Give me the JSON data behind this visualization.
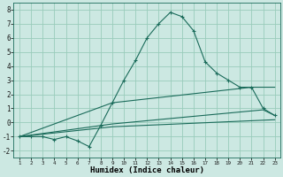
{
  "xlabel": "Humidex (Indice chaleur)",
  "ylabel": "",
  "bg_color": "#cce8e2",
  "grid_color": "#99ccbb",
  "line_color": "#1a6b5a",
  "xlim": [
    0.5,
    23.5
  ],
  "ylim": [
    -2.5,
    8.5
  ],
  "xticks": [
    1,
    2,
    3,
    4,
    5,
    6,
    7,
    8,
    9,
    10,
    11,
    12,
    13,
    14,
    15,
    16,
    17,
    18,
    19,
    20,
    21,
    22,
    23
  ],
  "yticks": [
    -2,
    -1,
    0,
    1,
    2,
    3,
    4,
    5,
    6,
    7,
    8
  ],
  "series": [
    {
      "x": [
        1,
        2,
        3,
        4,
        5,
        6,
        7,
        8,
        9,
        10,
        11,
        12,
        13,
        14,
        15,
        16,
        17,
        18,
        19,
        20,
        21,
        22,
        23
      ],
      "y": [
        -1,
        -1,
        -1,
        -1.2,
        -1,
        -1.3,
        -1.7,
        -0.2,
        1.4,
        3.0,
        4.4,
        6.0,
        7.0,
        7.8,
        7.5,
        6.5,
        4.3,
        3.5,
        3.0,
        2.5,
        2.5,
        1.0,
        0.5
      ],
      "marker": true
    },
    {
      "x": [
        1,
        9,
        21,
        23
      ],
      "y": [
        -1,
        1.4,
        2.5,
        2.5
      ],
      "marker": false
    },
    {
      "x": [
        1,
        9,
        22,
        23
      ],
      "y": [
        -1,
        -0.1,
        0.9,
        0.5
      ],
      "marker": false
    },
    {
      "x": [
        1,
        9,
        23
      ],
      "y": [
        -1,
        -0.3,
        0.2
      ],
      "marker": false
    }
  ]
}
